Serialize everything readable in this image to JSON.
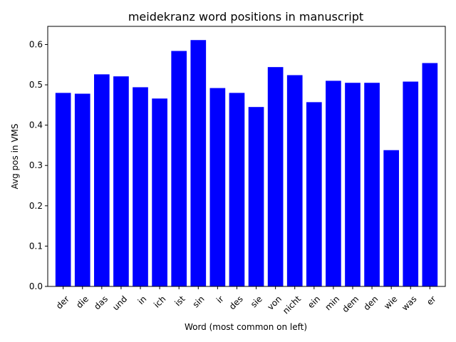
{
  "chart_data": {
    "type": "bar",
    "title": "meidekranz word positions in manuscript",
    "xlabel": "Word (most common on left)",
    "ylabel": "Avg pos in VMS",
    "categories": [
      "der",
      "die",
      "das",
      "und",
      "in",
      "ich",
      "ist",
      "sin",
      "ir",
      "des",
      "sie",
      "von",
      "nicht",
      "ein",
      "min",
      "dem",
      "den",
      "wie",
      "was",
      "er"
    ],
    "values": [
      0.48,
      0.478,
      0.526,
      0.521,
      0.494,
      0.466,
      0.584,
      0.611,
      0.492,
      0.48,
      0.445,
      0.544,
      0.524,
      0.457,
      0.51,
      0.505,
      0.505,
      0.338,
      0.508,
      0.554
    ],
    "ylim": [
      0,
      0.645
    ],
    "yticks": [
      0.0,
      0.1,
      0.2,
      0.3,
      0.4,
      0.5,
      0.6
    ],
    "ytick_labels": [
      "0.0",
      "0.1",
      "0.2",
      "0.3",
      "0.4",
      "0.5",
      "0.6"
    ],
    "bar_color": "#0000ff",
    "grid": false
  }
}
